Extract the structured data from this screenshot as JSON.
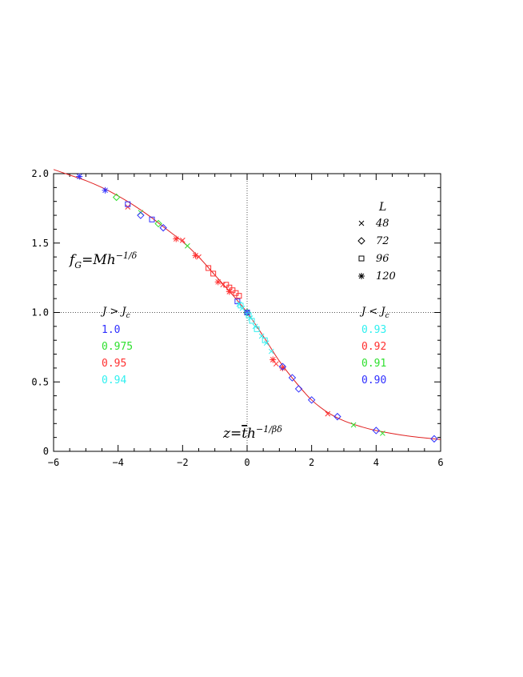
{
  "chart_data": {
    "type": "scatter",
    "title": "",
    "xlabel": "",
    "ylabel": "",
    "xlim": [
      -6,
      6
    ],
    "ylim": [
      0,
      2.0
    ],
    "x_ticks": [
      -6,
      -4,
      -2,
      0,
      2,
      4,
      6
    ],
    "y_ticks": [
      0,
      0.5,
      1.0,
      1.5,
      2.0
    ],
    "x_tick_labels": [
      "−6",
      "−4",
      "−2",
      "0",
      "2",
      "4",
      "6"
    ],
    "y_tick_labels": [
      "0",
      "0.5",
      "1.0",
      "1.5",
      "2.0"
    ],
    "grid": false,
    "reference_lines": {
      "x": 0,
      "y": 1.0,
      "style": "dotted"
    },
    "annotations": {
      "ylabel_text": "f_G=Mh^{-1/δ}",
      "xlabel_text": "z=t̄h^{-1/βδ}",
      "legend_title": "L",
      "left_group_title": "J > J_c",
      "right_group_title": "J < J_c"
    },
    "marker_legend": [
      {
        "symbol": "cross",
        "label": "48"
      },
      {
        "symbol": "diamond",
        "label": "72"
      },
      {
        "symbol": "square",
        "label": "96"
      },
      {
        "symbol": "asterisk",
        "label": "120"
      }
    ],
    "color_legend_left": [
      {
        "label": "1.0",
        "color": "#3030ff"
      },
      {
        "label": "0.975",
        "color": "#30e030"
      },
      {
        "label": "0.95",
        "color": "#ff3030"
      },
      {
        "label": "0.94",
        "color": "#30f0f0"
      }
    ],
    "color_legend_right": [
      {
        "label": "0.93",
        "color": "#30f0f0"
      },
      {
        "label": "0.92",
        "color": "#ff3030"
      },
      {
        "label": "0.91",
        "color": "#30e030"
      },
      {
        "label": "0.90",
        "color": "#3030ff"
      }
    ],
    "fit_curve": {
      "color": "#e02020",
      "points": [
        [
          -6.0,
          2.03
        ],
        [
          -5.5,
          1.99
        ],
        [
          -5.0,
          1.95
        ],
        [
          -4.5,
          1.9
        ],
        [
          -4.0,
          1.84
        ],
        [
          -3.5,
          1.77
        ],
        [
          -3.0,
          1.69
        ],
        [
          -2.5,
          1.6
        ],
        [
          -2.0,
          1.51
        ],
        [
          -1.5,
          1.4
        ],
        [
          -1.0,
          1.27
        ],
        [
          -0.5,
          1.14
        ],
        [
          0.0,
          1.0
        ],
        [
          0.5,
          0.83
        ],
        [
          1.0,
          0.65
        ],
        [
          1.5,
          0.5
        ],
        [
          2.0,
          0.37
        ],
        [
          2.5,
          0.28
        ],
        [
          3.0,
          0.22
        ],
        [
          3.5,
          0.18
        ],
        [
          4.0,
          0.15
        ],
        [
          5.0,
          0.11
        ],
        [
          6.0,
          0.085
        ]
      ]
    },
    "series": [
      {
        "name": "",
        "marker": "asterisk",
        "color": "#3030ff",
        "x": [
          -5.2,
          -4.4,
          0.0
        ],
        "y": [
          1.98,
          1.88,
          1.0
        ]
      },
      {
        "name": "",
        "marker": "diamond",
        "color": "#30e030",
        "x": [
          -4.05,
          -2.75,
          0.0
        ],
        "y": [
          1.83,
          1.64,
          1.0
        ]
      },
      {
        "name": "",
        "marker": "cross",
        "color": "#30e030",
        "x": [
          -3.3,
          -1.85,
          3.3,
          4.2
        ],
        "y": [
          1.72,
          1.48,
          0.19,
          0.13
        ]
      },
      {
        "name": "",
        "marker": "cross",
        "color": "#ff3030",
        "x": [
          -3.7,
          -2.0,
          -1.5,
          -0.75,
          0.9,
          2.5
        ],
        "y": [
          1.76,
          1.52,
          1.4,
          1.2,
          0.63,
          0.27
        ]
      },
      {
        "name": "",
        "marker": "asterisk",
        "color": "#ff3030",
        "x": [
          -2.2,
          -1.6,
          -0.9,
          -0.55,
          0.8,
          1.1
        ],
        "y": [
          1.53,
          1.41,
          1.22,
          1.15,
          0.66,
          0.6
        ]
      },
      {
        "name": "",
        "marker": "square",
        "color": "#3030ff",
        "x": [
          -3.7,
          -2.95,
          -0.3,
          0.0
        ],
        "y": [
          1.78,
          1.67,
          1.08,
          1.0
        ]
      },
      {
        "name": "",
        "marker": "diamond",
        "color": "#3030ff",
        "x": [
          -3.3,
          -2.6,
          1.1,
          1.4,
          1.6,
          2.0,
          2.8,
          4.0,
          5.8
        ],
        "y": [
          1.7,
          1.61,
          0.61,
          0.53,
          0.45,
          0.37,
          0.25,
          0.15,
          0.09
        ]
      },
      {
        "name": "",
        "marker": "square",
        "color": "#ff3030",
        "x": [
          -1.2,
          -1.05,
          -0.65,
          -0.55,
          -0.45,
          -0.35,
          -0.25
        ],
        "y": [
          1.32,
          1.28,
          1.2,
          1.18,
          1.16,
          1.14,
          1.12
        ]
      },
      {
        "name": "",
        "marker": "cross",
        "color": "#30f0f0",
        "x": [
          -0.25,
          -0.15,
          0.1,
          0.25,
          0.45,
          0.6,
          0.75
        ],
        "y": [
          1.06,
          1.03,
          0.96,
          0.9,
          0.83,
          0.78,
          0.72
        ]
      },
      {
        "name": "",
        "marker": "square",
        "color": "#30f0f0",
        "x": [
          -0.2,
          0.05,
          0.15,
          0.3,
          0.55
        ],
        "y": [
          1.05,
          0.98,
          0.94,
          0.88,
          0.8
        ]
      }
    ]
  }
}
